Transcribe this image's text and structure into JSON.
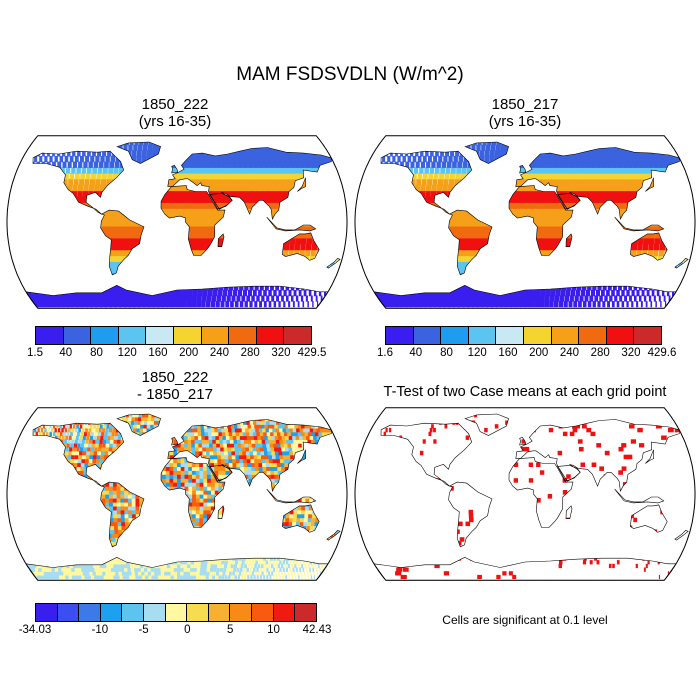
{
  "figure": {
    "main_title": "MAM FSDSVDLN (W/m^2)",
    "panels": {
      "top_left": {
        "title_line1": "1850_222",
        "title_line2": "(yrs 16-35)"
      },
      "top_right": {
        "title_line1": "1850_217",
        "title_line2": "(yrs 16-35)"
      },
      "bottom_left": {
        "title_line1": "1850_222",
        "title_line2": "- 1850_217"
      },
      "bottom_right": {
        "title": "T-Test of two Case means at each grid point"
      }
    },
    "significance_note": "Cells are significant at 0.1 level"
  },
  "colorbars": {
    "case1": {
      "labels": [
        "1.5",
        "40",
        "80",
        "120",
        "160",
        "200",
        "240",
        "280",
        "320",
        "429.5"
      ],
      "colors": [
        "#3a1ef0",
        "#3b63e0",
        "#1e9cf0",
        "#5cc4f0",
        "#c8e8f4",
        "#f5d330",
        "#f5a018",
        "#f06a10",
        "#f01010",
        "#cc2a2a"
      ]
    },
    "case2": {
      "labels": [
        "1.6",
        "40",
        "80",
        "120",
        "160",
        "200",
        "240",
        "280",
        "320",
        "429.6"
      ],
      "colors": [
        "#3a1ef0",
        "#3b63e0",
        "#1e9cf0",
        "#5cc4f0",
        "#c8e8f4",
        "#f5d330",
        "#f5a018",
        "#f06a10",
        "#f01010",
        "#cc2a2a"
      ]
    },
    "diff": {
      "labels": [
        "-34.03",
        "-10",
        "-5",
        "0",
        "5",
        "10",
        "42.43"
      ],
      "colors": [
        "#3a1ef0",
        "#3b4ff0",
        "#3b7ae8",
        "#1ea0f0",
        "#5cc4f0",
        "#a8dcf0",
        "#fff8a0",
        "#f8dc50",
        "#f8b030",
        "#f88a18",
        "#f85a10",
        "#f01a10",
        "#cc2a2a"
      ]
    }
  }
}
